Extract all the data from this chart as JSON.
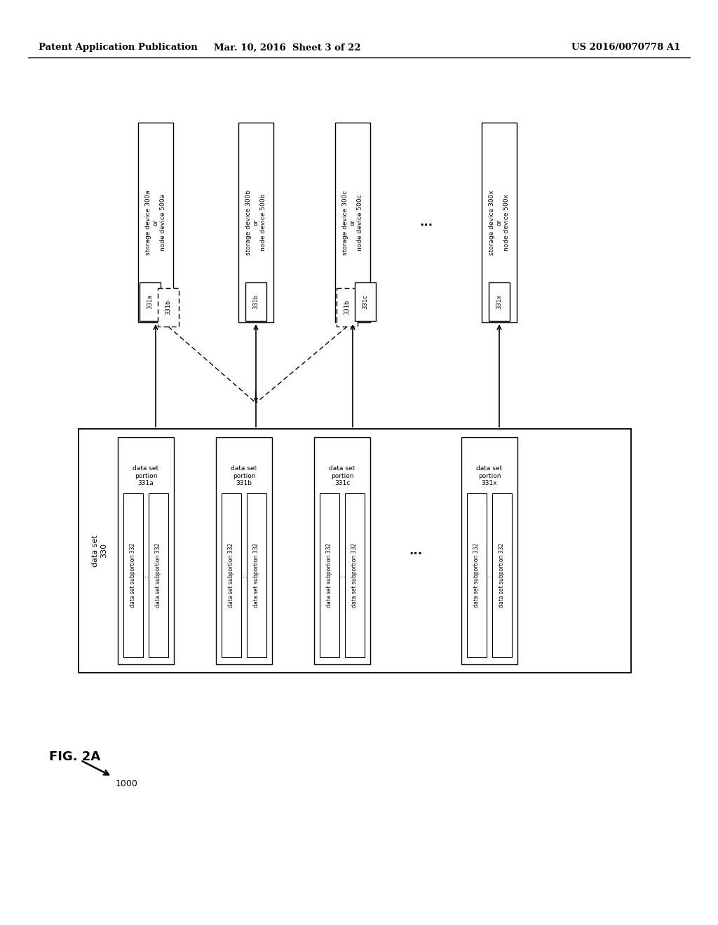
{
  "header_left": "Patent Application Publication",
  "header_mid": "Mar. 10, 2016  Sheet 3 of 22",
  "header_right": "US 2016/0070778 A1",
  "fig_label": "FIG. 2A",
  "fig_arrow_label": "1000",
  "bg_color": "#ffffff",
  "storage_texts": [
    "storage device 300a\nor\nnode device 500a",
    "storage device 300b\nor\nnode device 500b",
    "storage device 300c\nor\nnode device 500c",
    "storage device 300x\nor\nnode device 500x"
  ],
  "data_portion_texts": [
    "data set\nportion\n331a",
    "data set\nportion\n331b",
    "data set\nportion\n331c",
    "data set\nportion\n331x"
  ],
  "dataset_text": "data set\n330",
  "subportion_text": "data set subportion 332",
  "ellipsis": "..."
}
